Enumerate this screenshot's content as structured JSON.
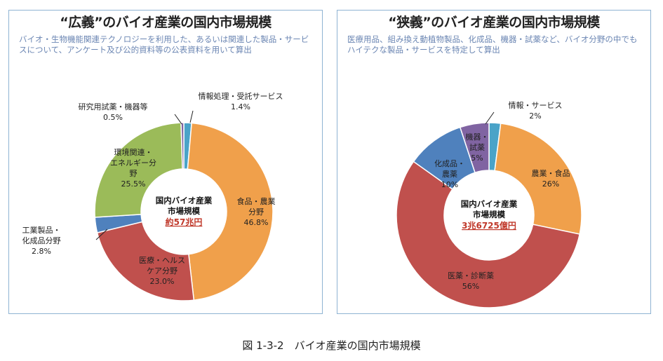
{
  "caption": "図 1-3-2　バイオ産業の国内市場規模",
  "chart_data": [
    {
      "type": "pie",
      "title": "“広義”のバイオ産業の国内市場規模",
      "subtitle": "バイオ・生物機能関連テクノロジーを利用した、あるいは関連した製品・サービスについて、アンケート及び公的資料等の公表資料を用いて算出",
      "center_label": [
        "国内バイオ産業",
        "市場規模"
      ],
      "center_value": "約57兆円",
      "slices": [
        {
          "label": "情報処理・受託サービス",
          "value": 1.4,
          "value_label": "1.4%",
          "color": "#4aa3c8"
        },
        {
          "label": "食品・農業分野",
          "value": 46.8,
          "value_label": "46.8%",
          "color": "#f0a04b"
        },
        {
          "label": "医療・ヘルスケア分野",
          "value": 23.0,
          "value_label": "23.0%",
          "color": "#c0504d"
        },
        {
          "label": "工業製品・化成品分野",
          "value": 2.8,
          "value_label": "2.8%",
          "color": "#4f81bd"
        },
        {
          "label": "環境関連・エネルギー分野",
          "value": 25.5,
          "value_label": "25.5%",
          "color": "#9bbb59"
        },
        {
          "label": "研究用試薬・機器等",
          "value": 0.5,
          "value_label": "0.5%",
          "color": "#8064a2"
        }
      ]
    },
    {
      "type": "pie",
      "title": "“狭義”のバイオ産業の国内市場規模",
      "subtitle": "医療用品、組み換え動植物製品、化成品、機器・試薬など、バイオ分野の中でもハイテクな製品・サービスを特定して算出",
      "center_label": [
        "国内バイオ産業",
        "市場規模"
      ],
      "center_value": "3兆6725億円",
      "slices": [
        {
          "label": "情報・サービス",
          "value": 2,
          "value_label": "2%",
          "color": "#4aa3c8"
        },
        {
          "label": "農業・食品",
          "value": 26,
          "value_label": "26%",
          "color": "#f0a04b"
        },
        {
          "label": "医薬・診断薬",
          "value": 56,
          "value_label": "56%",
          "color": "#c0504d"
        },
        {
          "label": "化成品・農薬",
          "value": 10,
          "value_label": "10%",
          "color": "#4f81bd"
        },
        {
          "label": "機器・試薬",
          "value": 5,
          "value_label": "5%",
          "color": "#8064a2"
        }
      ]
    }
  ]
}
